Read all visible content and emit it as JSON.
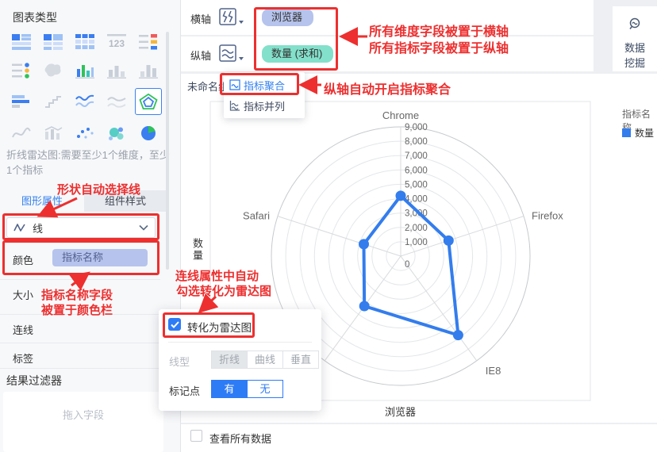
{
  "sidebar": {
    "title": "图表类型",
    "chart_types": [
      "grouped-table",
      "cross-table",
      "detail-table",
      "kpi-card",
      "colored-kpi-table",
      "index-card",
      "map",
      "multi-axis-chart",
      "bar-chart",
      "column-chart",
      "stacked-hbar",
      "step-chart",
      "line-chart",
      "area-chart",
      "radar-chart",
      "curve-chart",
      "combo-chart",
      "scatter-plot",
      "bubble-chart",
      "pie-chart"
    ],
    "selected_chart_type": "radar-chart",
    "description_line1": "折线雷达图:需要至少1个维度，至少",
    "description_line2": "1个指标",
    "tabs": [
      {
        "label": "图形属性"
      },
      {
        "label": "组件样式"
      }
    ],
    "shape_select_value": "线",
    "color_row": {
      "label": "颜色",
      "pill": "指标名称"
    },
    "rows": [
      "大小",
      "连线",
      "标签"
    ],
    "filter_section": {
      "title": "结果过滤器",
      "placeholder": "拖入字段"
    }
  },
  "topbar": {
    "horizontal_axis": {
      "label": "横轴",
      "pill": "浏览器"
    },
    "vertical_axis": {
      "label": "纵轴",
      "pill": "数量 (求和)"
    },
    "data_mining": {
      "line1": "数据",
      "line2": "挖掘"
    }
  },
  "axis_menu": {
    "items": [
      {
        "label": "指标聚合",
        "active": true
      },
      {
        "label": "指标并列",
        "active": false
      }
    ]
  },
  "annotations": {
    "dims_to_xaxis": "所有维度字段被置于横轴",
    "measures_to_yaxis": "所有指标字段被置于纵轴",
    "auto_aggregation": "纵轴自动开启指标聚合",
    "shape_auto_line": "形状自动选择线",
    "name_field_line1": "指标名称字段",
    "name_field_line2": "被置于颜色栏",
    "radar_auto_line1": "连线属性中自动",
    "radar_auto_line2": "勾选转化为雷达图",
    "color": "#ed2f2f"
  },
  "chart": {
    "title": "未命名组件",
    "y_axis_title": "数量",
    "x_axis_title": "浏览器",
    "legend_title": "指标名称",
    "legend_items": [
      {
        "label": "数量",
        "color": "#337ded"
      }
    ]
  },
  "chart_data": {
    "type": "radar",
    "categories": [
      "Chrome",
      "Firefox",
      "IE8",
      "",
      "Safari"
    ],
    "series": [
      {
        "name": "数量",
        "values": [
          4200,
          3500,
          6800,
          4300,
          2700
        ],
        "color": "#337ded"
      }
    ],
    "r_max": 9000,
    "r_tick_step": 1000,
    "tick_labels": [
      "0",
      "1,000",
      "2,000",
      "3,000",
      "4,000",
      "5,000",
      "6,000",
      "7,000",
      "8,000",
      "9,000"
    ],
    "grid": "circular",
    "legend_position": "right"
  },
  "popup": {
    "checkbox_label": "转化为雷达图",
    "checked": true,
    "line_type": {
      "label": "线型",
      "options": [
        "折线",
        "曲线",
        "垂直"
      ],
      "selected": "折线",
      "disabled": true
    },
    "marker": {
      "label": "标记点",
      "options": [
        "有",
        "无"
      ],
      "selected": "有"
    }
  },
  "footer": {
    "checkbox_label": "查看所有数据",
    "checked": false
  },
  "colors": {
    "accent": "#2e7bf6",
    "series": "#337ded",
    "dimension_pill": "#b6c3ec",
    "measure_pill": "#83e0cb",
    "annotation": "#ed2f2f"
  }
}
